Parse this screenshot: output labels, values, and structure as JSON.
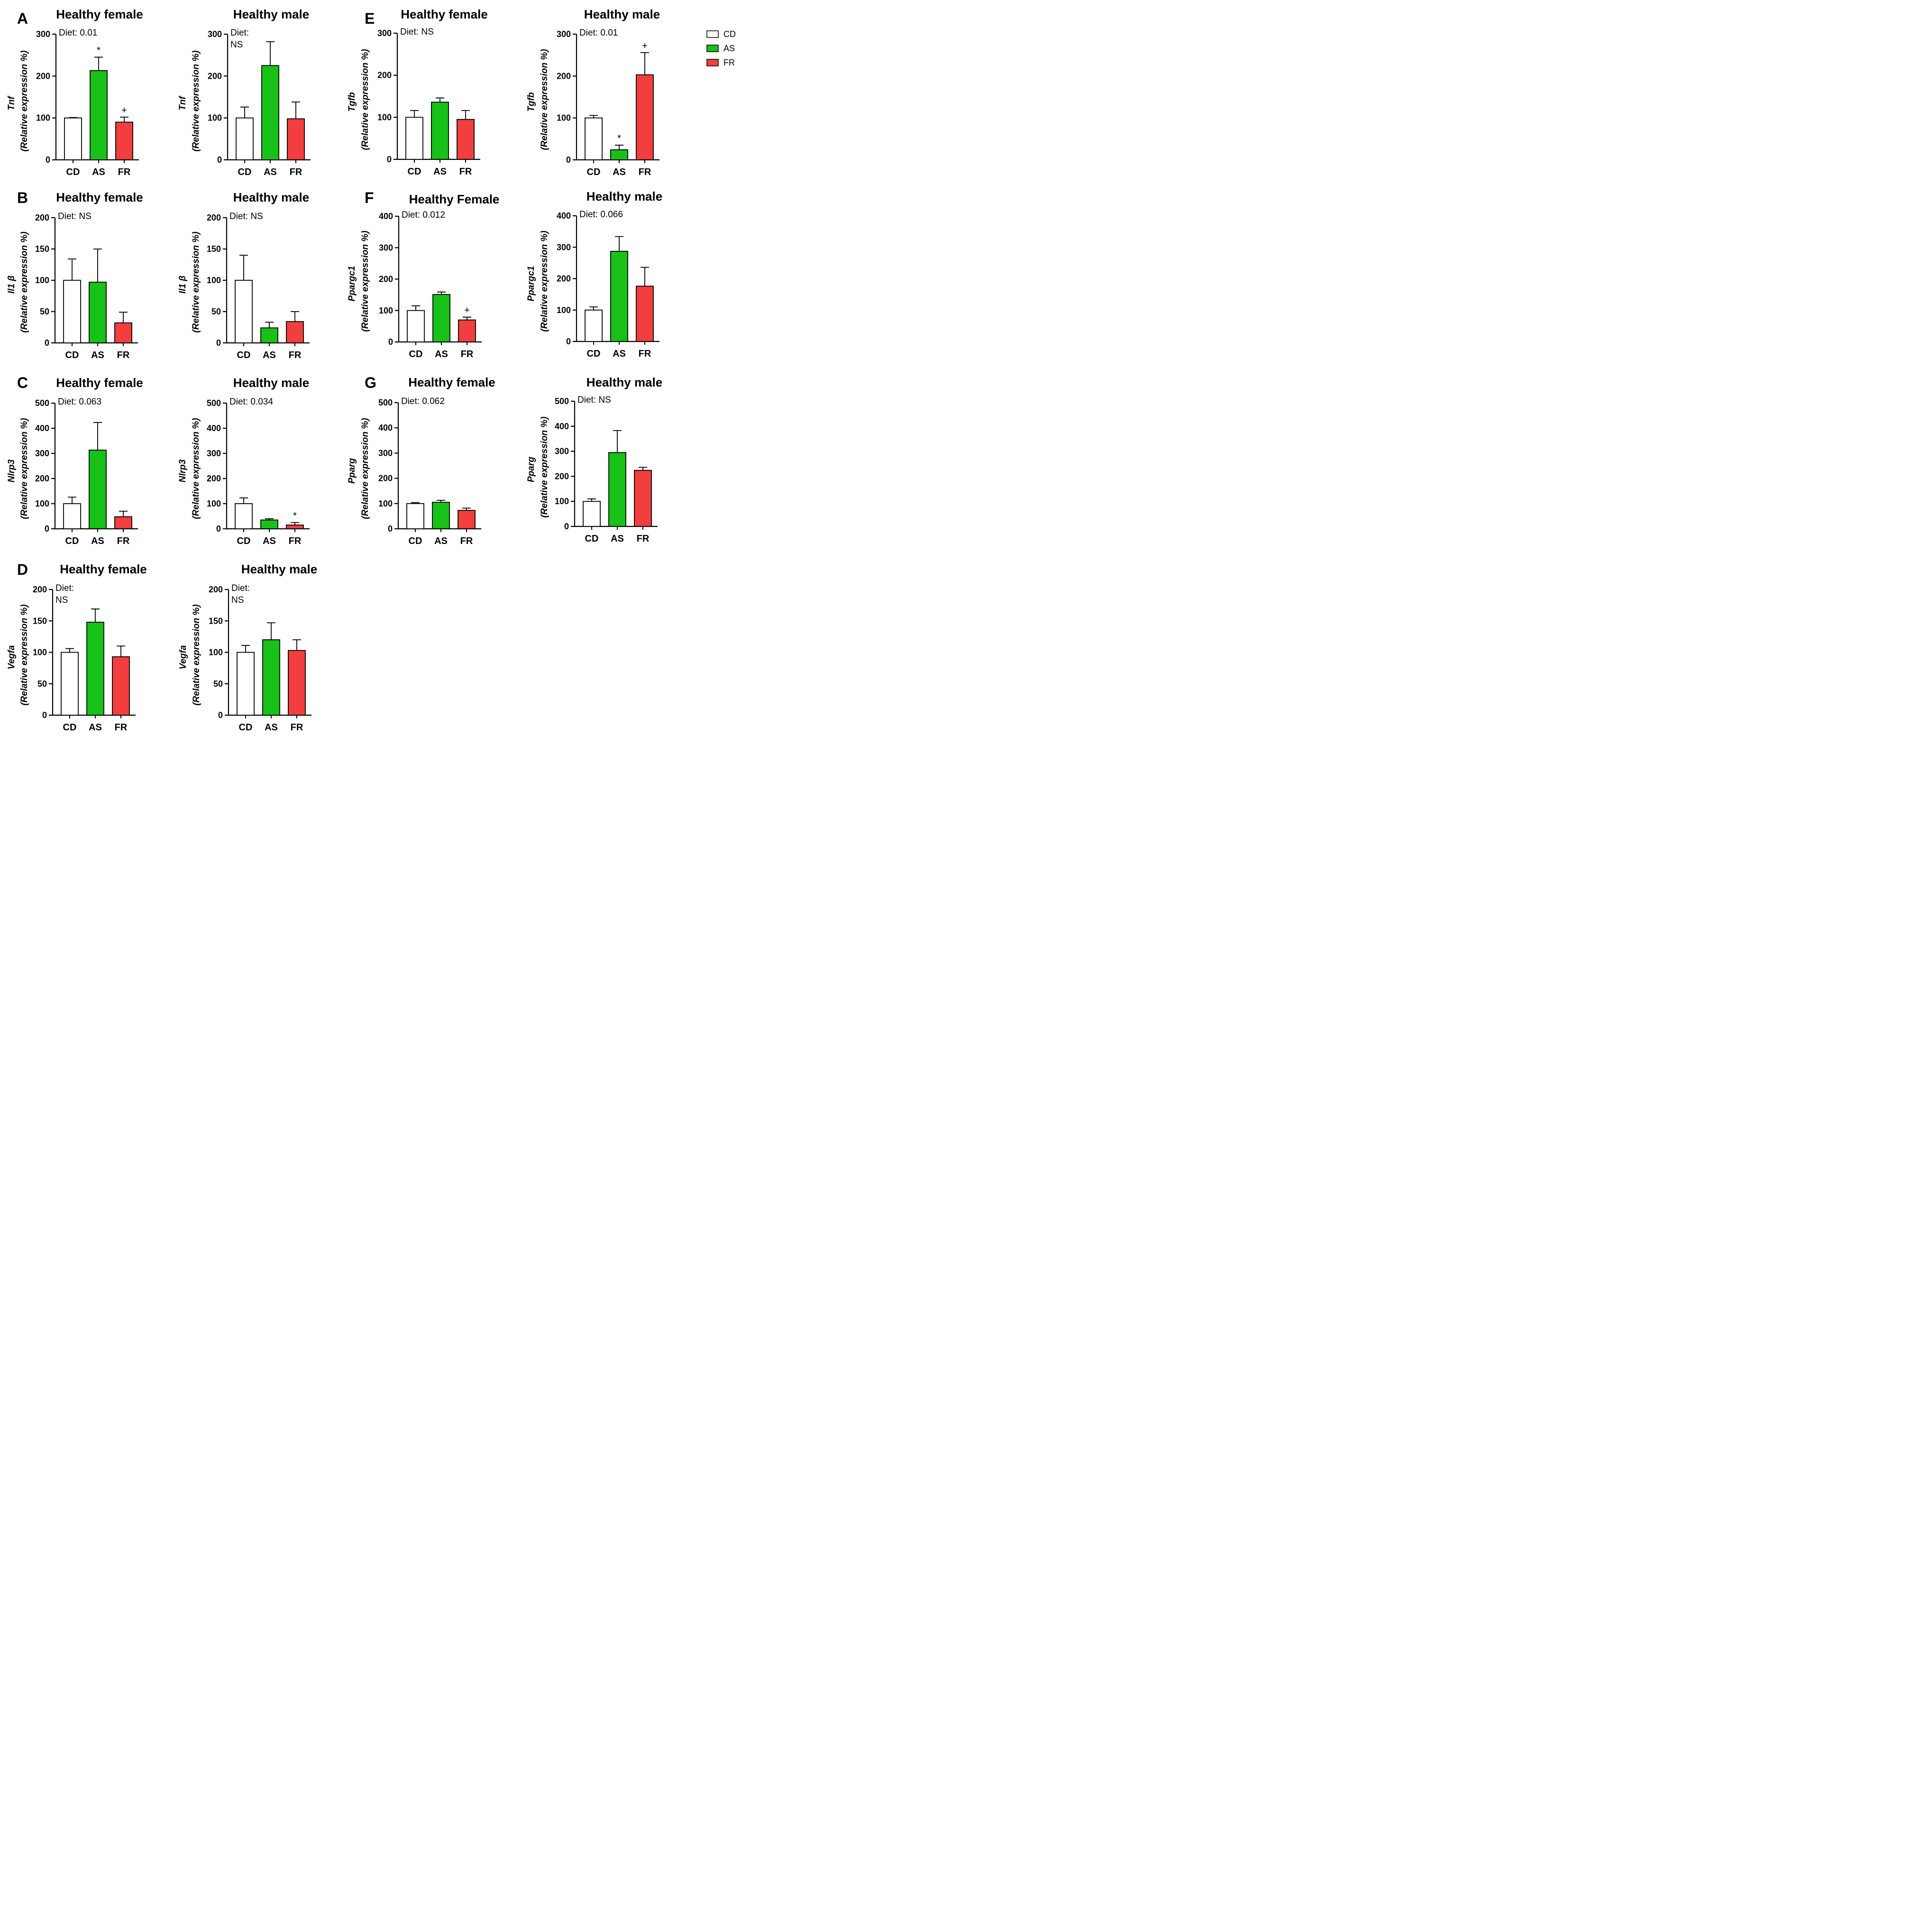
{
  "figure": {
    "colors": {
      "CD": "#ffffff",
      "AS": "#17c117",
      "FR": "#f23e3e",
      "stroke": "#000000"
    },
    "legend": [
      {
        "key": "CD",
        "label": "CD"
      },
      {
        "key": "AS",
        "label": "AS"
      },
      {
        "key": "FR",
        "label": "FR"
      }
    ],
    "ylabel_line2": "(Relative expression %)"
  },
  "chart_data": [
    {
      "id": "A-female",
      "type": "bar",
      "panel": "A",
      "title": "Healthy female",
      "gene": "Tnf",
      "diet_text": [
        "Diet: 0.01"
      ],
      "ylim": [
        0,
        300
      ],
      "yticks": [
        0,
        100,
        200,
        300
      ],
      "categories": [
        "CD",
        "AS",
        "FR"
      ],
      "values": [
        100,
        213,
        90
      ],
      "errors": [
        1,
        32,
        12
      ],
      "annotations": [
        "",
        "*",
        "+"
      ]
    },
    {
      "id": "A-male",
      "type": "bar",
      "panel": "",
      "title": "Healthy male",
      "gene": "Tnf",
      "diet_text": [
        "Diet:",
        "NS"
      ],
      "ylim": [
        0,
        300
      ],
      "yticks": [
        0,
        100,
        200,
        300
      ],
      "categories": [
        "CD",
        "AS",
        "FR"
      ],
      "values": [
        100,
        225,
        98
      ],
      "errors": [
        26,
        57,
        40
      ],
      "annotations": [
        "",
        "",
        ""
      ]
    },
    {
      "id": "B-female",
      "type": "bar",
      "panel": "B",
      "title": "Healthy female",
      "gene": "Il1 β",
      "diet_text": [
        "Diet: NS"
      ],
      "ylim": [
        0,
        200
      ],
      "yticks": [
        0,
        50,
        100,
        150,
        200
      ],
      "categories": [
        "CD",
        "AS",
        "FR"
      ],
      "values": [
        100,
        97,
        32
      ],
      "errors": [
        34,
        53,
        17
      ],
      "annotations": [
        "",
        "",
        ""
      ]
    },
    {
      "id": "B-male",
      "type": "bar",
      "panel": "",
      "title": "Healthy male",
      "gene": "Il1 β",
      "diet_text": [
        "Diet: NS"
      ],
      "ylim": [
        0,
        200
      ],
      "yticks": [
        0,
        50,
        100,
        150,
        200
      ],
      "categories": [
        "CD",
        "AS",
        "FR"
      ],
      "values": [
        100,
        24,
        34
      ],
      "errors": [
        40,
        9,
        16
      ],
      "annotations": [
        "",
        "",
        ""
      ]
    },
    {
      "id": "C-female",
      "type": "bar",
      "panel": "C",
      "title": "Healthy female",
      "gene": "Nlrp3",
      "diet_text": [
        "Diet: 0.063"
      ],
      "ylim": [
        0,
        500
      ],
      "yticks": [
        0,
        100,
        200,
        300,
        400,
        500
      ],
      "categories": [
        "CD",
        "AS",
        "FR"
      ],
      "values": [
        100,
        313,
        48
      ],
      "errors": [
        26,
        110,
        22
      ],
      "annotations": [
        "",
        "",
        ""
      ]
    },
    {
      "id": "C-male",
      "type": "bar",
      "panel": "",
      "title": "Healthy male",
      "gene": "Nlrp3",
      "diet_text": [
        "Diet: 0.034"
      ],
      "ylim": [
        0,
        500
      ],
      "yticks": [
        0,
        100,
        200,
        300,
        400,
        500
      ],
      "categories": [
        "CD",
        "AS",
        "FR"
      ],
      "values": [
        100,
        35,
        15
      ],
      "errors": [
        23,
        5,
        10
      ],
      "annotations": [
        "",
        "",
        "*"
      ]
    },
    {
      "id": "D-female",
      "type": "bar",
      "panel": "D",
      "title": "Healthy female",
      "gene": "Vegfa",
      "diet_text": [
        "Diet:",
        "NS"
      ],
      "ylim": [
        0,
        200
      ],
      "yticks": [
        0,
        50,
        100,
        150,
        200
      ],
      "categories": [
        "CD",
        "AS",
        "FR"
      ],
      "values": [
        100,
        148,
        93
      ],
      "errors": [
        6,
        21,
        17
      ],
      "annotations": [
        "",
        "",
        ""
      ]
    },
    {
      "id": "D-male",
      "type": "bar",
      "panel": "",
      "title": "Healthy male",
      "gene": "Vegfa",
      "diet_text": [
        "Diet:",
        "NS"
      ],
      "ylim": [
        0,
        200
      ],
      "yticks": [
        0,
        50,
        100,
        150,
        200
      ],
      "categories": [
        "CD",
        "AS",
        "FR"
      ],
      "values": [
        100,
        120,
        103
      ],
      "errors": [
        11,
        27,
        17
      ],
      "annotations": [
        "",
        "",
        ""
      ]
    },
    {
      "id": "E-female",
      "type": "bar",
      "panel": "E",
      "title": "Healthy female",
      "gene": "Tgfb",
      "diet_text": [
        "Diet: NS"
      ],
      "ylim": [
        0,
        300
      ],
      "yticks": [
        0,
        100,
        200,
        300
      ],
      "categories": [
        "CD",
        "AS",
        "FR"
      ],
      "values": [
        100,
        136,
        95
      ],
      "errors": [
        16,
        10,
        21
      ],
      "annotations": [
        "",
        "",
        ""
      ]
    },
    {
      "id": "E-male",
      "type": "bar",
      "panel": "",
      "title": "Healthy male",
      "gene": "Tgfb",
      "diet_text": [
        "Diet: 0.01"
      ],
      "ylim": [
        0,
        300
      ],
      "yticks": [
        0,
        100,
        200,
        300
      ],
      "categories": [
        "CD",
        "AS",
        "FR"
      ],
      "values": [
        100,
        24,
        203
      ],
      "errors": [
        6,
        11,
        53
      ],
      "annotations": [
        "",
        "*",
        "+"
      ]
    },
    {
      "id": "F-female",
      "type": "bar",
      "panel": "F",
      "title": "Healthy Female",
      "gene": "Ppargc1",
      "diet_text": [
        "Diet: 0.012"
      ],
      "ylim": [
        0,
        400
      ],
      "yticks": [
        0,
        100,
        200,
        300,
        400
      ],
      "categories": [
        "CD",
        "AS",
        "FR"
      ],
      "values": [
        100,
        151,
        70
      ],
      "errors": [
        15,
        8,
        9
      ],
      "annotations": [
        "",
        "",
        "+"
      ]
    },
    {
      "id": "F-male",
      "type": "bar",
      "panel": "",
      "title": "Healthy male",
      "gene": "Ppargc1",
      "diet_text": [
        "Diet: 0.066"
      ],
      "ylim": [
        0,
        400
      ],
      "yticks": [
        0,
        100,
        200,
        300,
        400
      ],
      "categories": [
        "CD",
        "AS",
        "FR"
      ],
      "values": [
        100,
        287,
        176
      ],
      "errors": [
        10,
        47,
        60
      ],
      "annotations": [
        "",
        "",
        ""
      ]
    },
    {
      "id": "G-female",
      "type": "bar",
      "panel": "G",
      "title": "Healthy female",
      "gene": "Pparg",
      "diet_text": [
        "Diet: 0.062"
      ],
      "ylim": [
        0,
        500
      ],
      "yticks": [
        0,
        100,
        200,
        300,
        400,
        500
      ],
      "categories": [
        "CD",
        "AS",
        "FR"
      ],
      "values": [
        100,
        105,
        73
      ],
      "errors": [
        4,
        8,
        9
      ],
      "annotations": [
        "",
        "",
        ""
      ]
    },
    {
      "id": "G-male",
      "type": "bar",
      "panel": "",
      "title": "Healthy male",
      "gene": "Pparg",
      "diet_text": [
        "Diet: NS"
      ],
      "ylim": [
        0,
        500
      ],
      "yticks": [
        0,
        100,
        200,
        300,
        400,
        500
      ],
      "categories": [
        "CD",
        "AS",
        "FR"
      ],
      "values": [
        100,
        295,
        224
      ],
      "errors": [
        10,
        88,
        12
      ],
      "annotations": [
        "",
        "",
        ""
      ]
    }
  ]
}
